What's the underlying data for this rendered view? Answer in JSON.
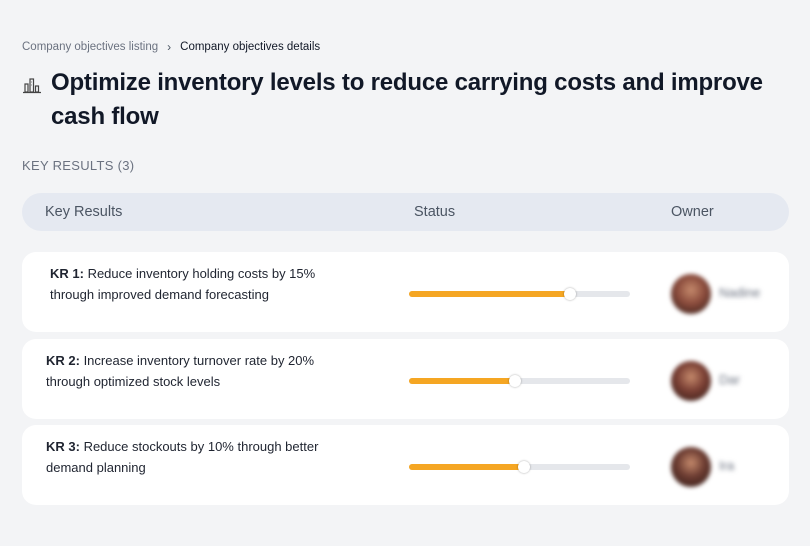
{
  "breadcrumb": {
    "parent": "Company objectives listing",
    "separator": "›",
    "current": "Company objectives details"
  },
  "objective": {
    "icon": "building-chart-icon",
    "title": "Optimize inventory levels to reduce carrying costs and improve cash flow"
  },
  "key_results_label": "KEY RESULTS (3)",
  "table": {
    "columns": [
      "Key Results",
      "Status",
      "Owner"
    ]
  },
  "key_results": [
    {
      "id": "KR 1:",
      "text": "Reduce inventory holding costs by 15% through improved demand forecasting",
      "progress": 0.73,
      "owner": "Nadine",
      "avatar_color": "#8a4b3c"
    },
    {
      "id": "KR 2:",
      "text": "Increase inventory turnover rate by 20% through optimized stock levels",
      "progress": 0.48,
      "owner": "Dar",
      "avatar_color": "#7a3f34"
    },
    {
      "id": "KR 3:",
      "text": "Reduce stockouts by 10% through better demand planning",
      "progress": 0.52,
      "owner": "Ira",
      "avatar_color": "#6b3b31"
    }
  ],
  "colors": {
    "progress_fill": "#f5a623",
    "progress_track": "#e5e7eb",
    "header_bg": "#e5e9f1",
    "page_bg": "#f3f4f6"
  }
}
